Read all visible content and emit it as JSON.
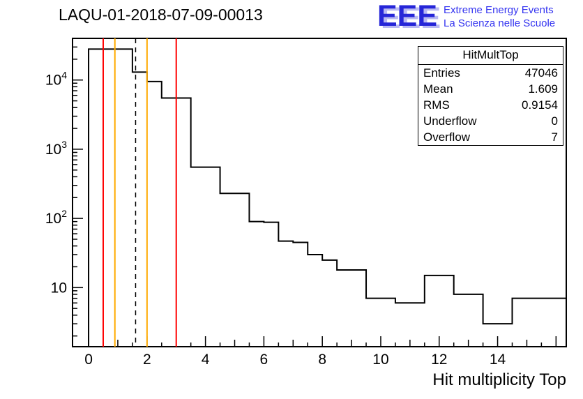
{
  "title": "LAQU-01-2018-07-09-00013",
  "logo": {
    "letters": "EEE",
    "line1": "Extreme Energy Events",
    "line2": "La Scienza nelle Scuole",
    "color": "#2626d8"
  },
  "stats": {
    "title": "HitMultTop",
    "rows": [
      [
        "Entries",
        "47046"
      ],
      [
        "Mean",
        "1.609"
      ],
      [
        "RMS",
        "0.9154"
      ],
      [
        "Underflow",
        "0"
      ],
      [
        "Overflow",
        "7"
      ]
    ]
  },
  "chart_data": {
    "type": "bar",
    "title": "LAQU-01-2018-07-09-00013",
    "xlabel": "Hit multiplicity Top",
    "ylabel": "",
    "ylog": true,
    "grid": false,
    "xlim": [
      -0.55,
      16.35
    ],
    "ylim": [
      1.4,
      40000
    ],
    "bin_start": 0,
    "bin_width": 0.5,
    "values": [
      28000,
      28000,
      28000,
      13000,
      9500,
      5500,
      5500,
      550,
      550,
      230,
      230,
      90,
      88,
      47,
      45,
      30,
      25,
      18,
      18,
      7,
      7,
      6,
      6,
      15,
      15,
      8,
      8,
      3,
      3,
      7
    ],
    "x_major_ticks": [
      0,
      2,
      4,
      6,
      8,
      10,
      12,
      14
    ],
    "y_decades": [
      1,
      2,
      3,
      4
    ],
    "line_color": "#000000",
    "vlines": [
      {
        "x": 0.5,
        "color": "#ff0000",
        "style": "solid",
        "name": "marker-line-red-low"
      },
      {
        "x": 0.9,
        "color": "#ffaa00",
        "style": "solid",
        "name": "marker-line-orange-low"
      },
      {
        "x": 1.609,
        "color": "#000000",
        "style": "dashed",
        "name": "marker-line-mean"
      },
      {
        "x": 2.0,
        "color": "#ffaa00",
        "style": "solid",
        "name": "marker-line-orange-high"
      },
      {
        "x": 3.0,
        "color": "#ff0000",
        "style": "solid",
        "name": "marker-line-red-high"
      }
    ]
  }
}
